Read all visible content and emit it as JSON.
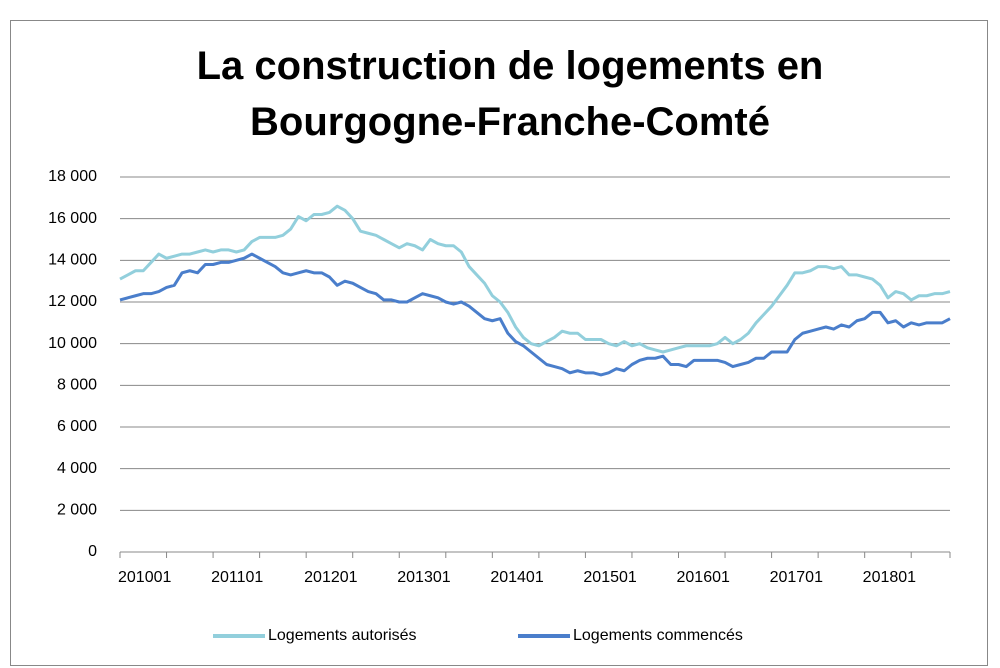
{
  "chart_data": {
    "type": "line",
    "title": "La construction de logements en Bourgogne-Franche-Comté",
    "categories": [
      "201001",
      null,
      null,
      null,
      null,
      null,
      null,
      null,
      null,
      null,
      null,
      null,
      "201101",
      null,
      null,
      null,
      null,
      null,
      null,
      null,
      null,
      null,
      null,
      null,
      "201201",
      null,
      null,
      null,
      null,
      null,
      null,
      null,
      null,
      null,
      null,
      null,
      "201301",
      null,
      null,
      null,
      null,
      null,
      null,
      null,
      null,
      null,
      null,
      null,
      "201401",
      null,
      null,
      null,
      null,
      null,
      null,
      null,
      null,
      null,
      null,
      null,
      "201501",
      null,
      null,
      null,
      null,
      null,
      null,
      null,
      null,
      null,
      null,
      null,
      "201601",
      null,
      null,
      null,
      null,
      null,
      null,
      null,
      null,
      null,
      null,
      null,
      "201701",
      null,
      null,
      null,
      null,
      null,
      null,
      null,
      null,
      null,
      null,
      null,
      "201801",
      null,
      null,
      null,
      null,
      null,
      null,
      null,
      null,
      null,
      null,
      null
    ],
    "series": [
      {
        "name": "Logements autorisés",
        "color": "#92cfdc",
        "values": [
          13100,
          13300,
          13500,
          13500,
          13900,
          14300,
          14100,
          14200,
          14300,
          14300,
          14400,
          14500,
          14400,
          14500,
          14500,
          14400,
          14500,
          14900,
          15100,
          15100,
          15100,
          15200,
          15500,
          16100,
          15900,
          16200,
          16200,
          16300,
          16600,
          16400,
          16000,
          15400,
          15300,
          15200,
          15000,
          14800,
          14600,
          14800,
          14700,
          14500,
          15000,
          14800,
          14700,
          14700,
          14400,
          13700,
          13300,
          12900,
          12300,
          12000,
          11500,
          10800,
          10300,
          10000,
          9900,
          10100,
          10300,
          10600,
          10500,
          10500,
          10200,
          10200,
          10200,
          10000,
          9900,
          10100,
          9900,
          10000,
          9800,
          9700,
          9600,
          9700,
          9800,
          9900,
          9900,
          9900,
          9900,
          10000,
          10300,
          10000,
          10200,
          10500,
          11000,
          11400,
          11800,
          12300,
          12800,
          13400,
          13400,
          13500,
          13700,
          13700,
          13600,
          13700,
          13300,
          13300,
          13200,
          13100,
          12800,
          12200,
          12500,
          12400,
          12100,
          12300,
          12300,
          12400,
          12400,
          12500
        ]
      },
      {
        "name": "Logements commencés",
        "color": "#4a7ecb",
        "values": [
          12100,
          12200,
          12300,
          12400,
          12400,
          12500,
          12700,
          12800,
          13400,
          13500,
          13400,
          13800,
          13800,
          13900,
          13900,
          14000,
          14100,
          14300,
          14100,
          13900,
          13700,
          13400,
          13300,
          13400,
          13500,
          13400,
          13400,
          13200,
          12800,
          13000,
          12900,
          12700,
          12500,
          12400,
          12100,
          12100,
          12000,
          12000,
          12200,
          12400,
          12300,
          12200,
          12000,
          11900,
          12000,
          11800,
          11500,
          11200,
          11100,
          11200,
          10500,
          10100,
          9900,
          9600,
          9300,
          9000,
          8900,
          8800,
          8600,
          8700,
          8600,
          8600,
          8500,
          8600,
          8800,
          8700,
          9000,
          9200,
          9300,
          9300,
          9400,
          9000,
          9000,
          8900,
          9200,
          9200,
          9200,
          9200,
          9100,
          8900,
          9000,
          9100,
          9300,
          9300,
          9600,
          9600,
          9600,
          10200,
          10500,
          10600,
          10700,
          10800,
          10700,
          10900,
          10800,
          11100,
          11200,
          11500,
          11500,
          11000,
          11100,
          10800,
          11000,
          10900,
          11000,
          11000,
          11000,
          11200
        ]
      }
    ],
    "ylim": [
      0,
      18000
    ],
    "yticks": [
      0,
      {
        "value": 2000,
        "label": "2 000"
      },
      {
        "value": 4000,
        "label": "4 000"
      },
      {
        "value": 6000,
        "label": "6 000"
      },
      {
        "value": 8000,
        "label": "8 000"
      },
      {
        "value": 10000,
        "label": "10 000"
      },
      {
        "value": 12000,
        "label": "12 000"
      },
      {
        "value": 14000,
        "label": "14 000"
      },
      {
        "value": 16000,
        "label": "16 000"
      },
      {
        "value": 18000,
        "label": "18 000"
      }
    ],
    "grid": true,
    "legend": "bottom"
  }
}
